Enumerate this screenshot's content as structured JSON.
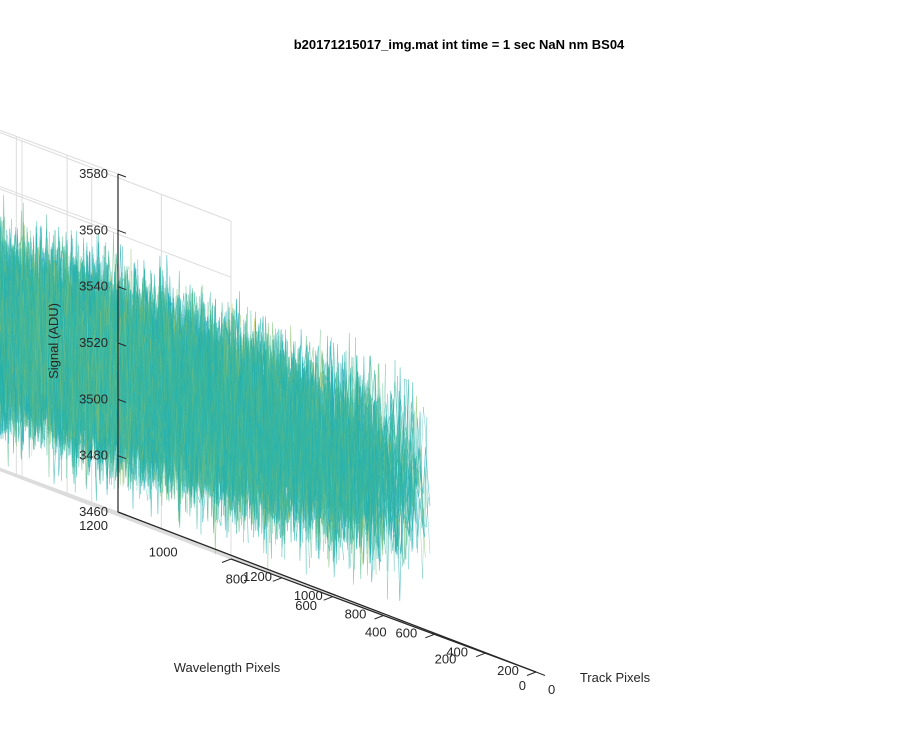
{
  "chart_data": {
    "type": "surface",
    "title": "b20171215017_img.mat int time = 1 sec  NaN nm BS04",
    "xlabel": "Track Pixels",
    "ylabel": "Wavelength Pixels",
    "zlabel": "Signal (ADU)",
    "xlim": [
      0,
      1200
    ],
    "ylim": [
      0,
      1200
    ],
    "zlim": [
      3460,
      3580
    ],
    "xticks": [
      "0",
      "200",
      "400",
      "600",
      "800",
      "1000",
      "1200"
    ],
    "yticks": [
      "0",
      "200",
      "400",
      "600",
      "800",
      "1000",
      "1200"
    ],
    "zticks": [
      "3460",
      "3480",
      "3500",
      "3520",
      "3540",
      "3560",
      "3580"
    ],
    "grid": true,
    "colormap": "parula",
    "data_extent": {
      "x": [
        0,
        1024
      ],
      "y": [
        0,
        1024
      ]
    },
    "signal_mean": 3510,
    "signal_noise_range": [
      3470,
      3565
    ],
    "colors": {
      "low": "#1ba3cf",
      "mid": "#2ab6a6",
      "high": "#d6c94a"
    }
  }
}
